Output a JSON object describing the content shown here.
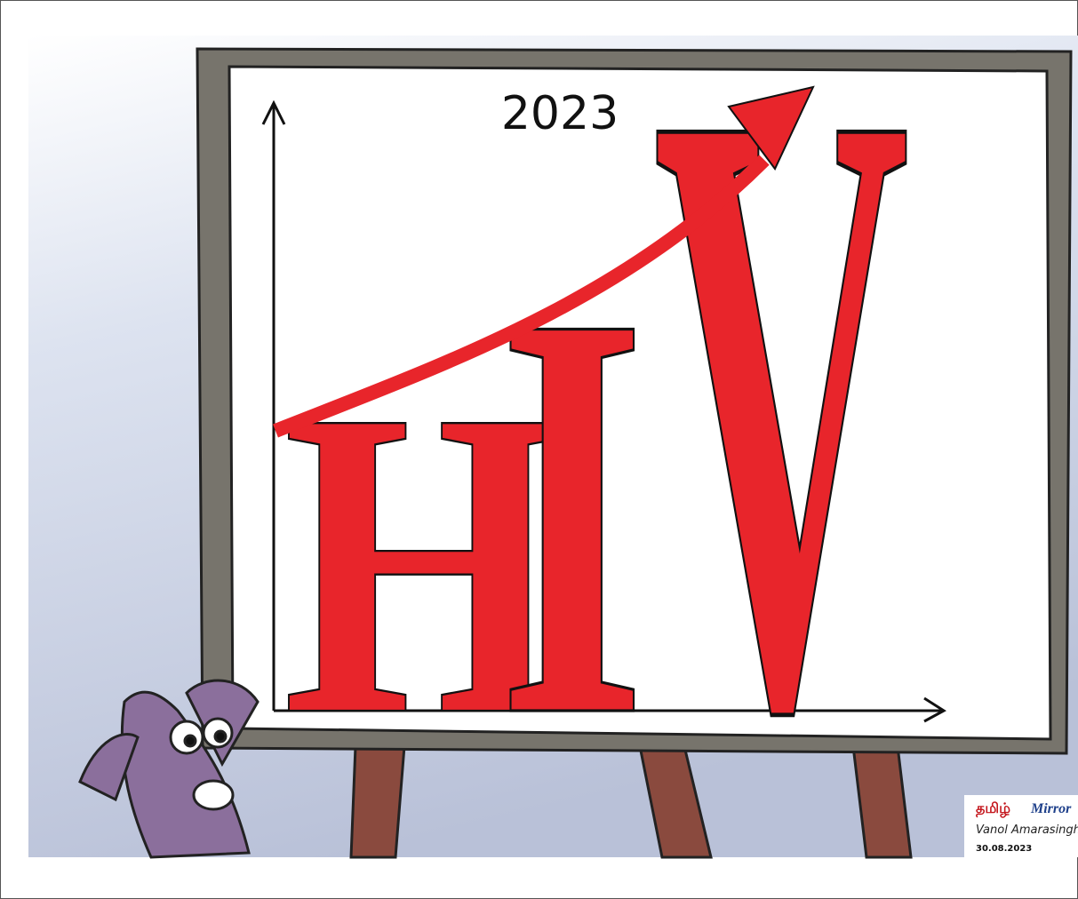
{
  "title": "2023",
  "letters": [
    "H",
    "I",
    "V"
  ],
  "logo": {
    "tamil": "தமிழ்",
    "brand": "Mirror"
  },
  "signature": "Vanol Amarasinghe",
  "date": "30.08.2023"
}
